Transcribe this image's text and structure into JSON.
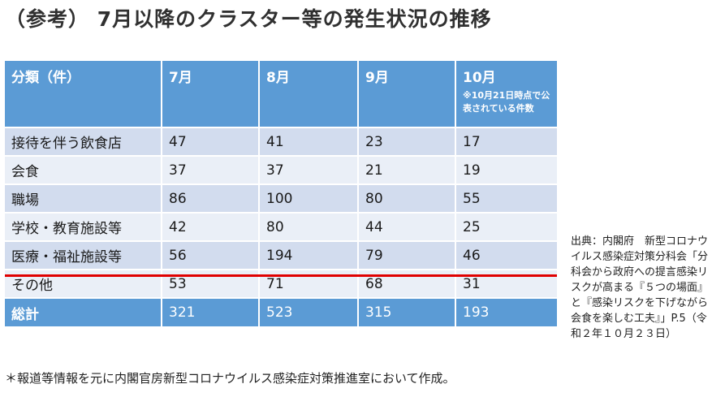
{
  "title": "（参考） 7月以降のクラスター等の発生状況の推移",
  "table": {
    "headers": [
      {
        "label": "分類（件）",
        "note": ""
      },
      {
        "label": "7月",
        "note": ""
      },
      {
        "label": "8月",
        "note": ""
      },
      {
        "label": "9月",
        "note": ""
      },
      {
        "label": "10月",
        "note": "※10月21日時点で公表されている件数"
      }
    ],
    "rows": [
      [
        "接待を伴う飲食店",
        "47",
        "41",
        "23",
        "17"
      ],
      [
        "会食",
        "37",
        "37",
        "21",
        "19"
      ],
      [
        "職場",
        "86",
        "100",
        "80",
        "55"
      ],
      [
        "学校・教育施設等",
        "42",
        "80",
        "44",
        "25"
      ],
      [
        "医療・福祉施設等",
        "56",
        "194",
        "79",
        "46"
      ],
      [
        "その他",
        "53",
        "71",
        "68",
        "31"
      ]
    ],
    "total": [
      "総計",
      "321",
      "523",
      "315",
      "193"
    ]
  },
  "source": "出典：内閣府　新型コロナウイルス感染症対策分科会「分科会から政府への提言感染リスクが高まる『５つの場面』と『感染リスクを下げながら会食を楽しむ工夫』」P.5（令和２年１０月２３日）",
  "footnote": "＊報道等情報を元に内閣官房新型コロナウイルス感染症対策推進室において作成。",
  "colors": {
    "header": "#5b9bd5",
    "row_dark": "#d2dcee",
    "row_light": "#eaeff7",
    "highlight_line": "#e00000"
  }
}
